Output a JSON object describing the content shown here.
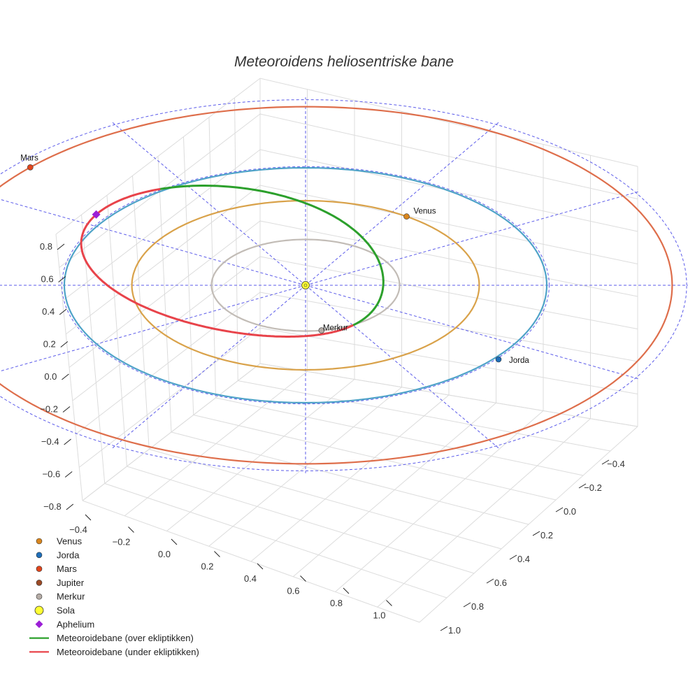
{
  "chart_data": {
    "type": "3d-line",
    "title": "Meteoroidens heliosentriske bane",
    "xlabel": "",
    "ylabel": "",
    "zlabel": "",
    "xlim": [
      -0.5,
      1.1
    ],
    "ylim": [
      -0.5,
      1.1
    ],
    "zlim": [
      -0.85,
      0.9
    ],
    "x_ticks": [
      "−0.4",
      "−0.2",
      "0.0",
      "0.2",
      "0.4",
      "0.6",
      "0.8",
      "1.0"
    ],
    "y_ticks": [
      "−0.4",
      "−0.2",
      "0.0",
      "0.2",
      "0.4",
      "0.6",
      "0.8",
      "1.0"
    ],
    "z_ticks": [
      "−0.8",
      "−0.6",
      "−0.4",
      "−0.2",
      "0.0",
      "0.2",
      "0.4",
      "0.6",
      "0.8"
    ],
    "grid": true,
    "legend_position": "bottom-left",
    "orbits": [
      {
        "name": "Mars",
        "radius_au": 1.52,
        "color": "#de6e4b"
      },
      {
        "name": "Jorda",
        "radius_au": 1.0,
        "color": "#4fa3c8"
      },
      {
        "name": "Venus",
        "radius_au": 0.72,
        "color": "#d9a24a"
      },
      {
        "name": "Merkur",
        "radius_au": 0.39,
        "color": "#c2bcb6"
      }
    ],
    "meteoroid_orbit": {
      "q_au": 0.3,
      "Q_au": 1.0,
      "above_color": "#2ca02c",
      "below_color": "#e8434a"
    },
    "bodies": [
      {
        "name": "Mars",
        "label": "Mars",
        "color": "#e2451c"
      },
      {
        "name": "Venus",
        "label": "Venus",
        "color": "#d9861e"
      },
      {
        "name": "Jorda",
        "label": "Jorda",
        "color": "#1f6fba"
      },
      {
        "name": "Merkur",
        "label": "Merkur",
        "color": "#b5aca6"
      },
      {
        "name": "Sola",
        "label": "",
        "color": "#ffff33"
      }
    ],
    "aphelium": {
      "color": "#9b1ed6"
    },
    "legend": [
      {
        "label": "Venus",
        "marker": "circle",
        "color": "#d9861e"
      },
      {
        "label": "Jorda",
        "marker": "circle",
        "color": "#1f6fba"
      },
      {
        "label": "Mars",
        "marker": "circle",
        "color": "#e2451c"
      },
      {
        "label": "Jupiter",
        "marker": "circle",
        "color": "#9c4a25"
      },
      {
        "label": "Merkur",
        "marker": "circle",
        "color": "#b5aca6"
      },
      {
        "label": "Sola",
        "marker": "big-circle",
        "color": "#ffff33"
      },
      {
        "label": "Aphelium",
        "marker": "diamond",
        "color": "#9b1ed6"
      },
      {
        "label": "Meteoroidebane (over ekliptikken)",
        "marker": "line",
        "color": "#2ca02c"
      },
      {
        "label": "Meteoroidebane (under ekliptikken)",
        "marker": "line",
        "color": "#e8434a"
      }
    ]
  }
}
